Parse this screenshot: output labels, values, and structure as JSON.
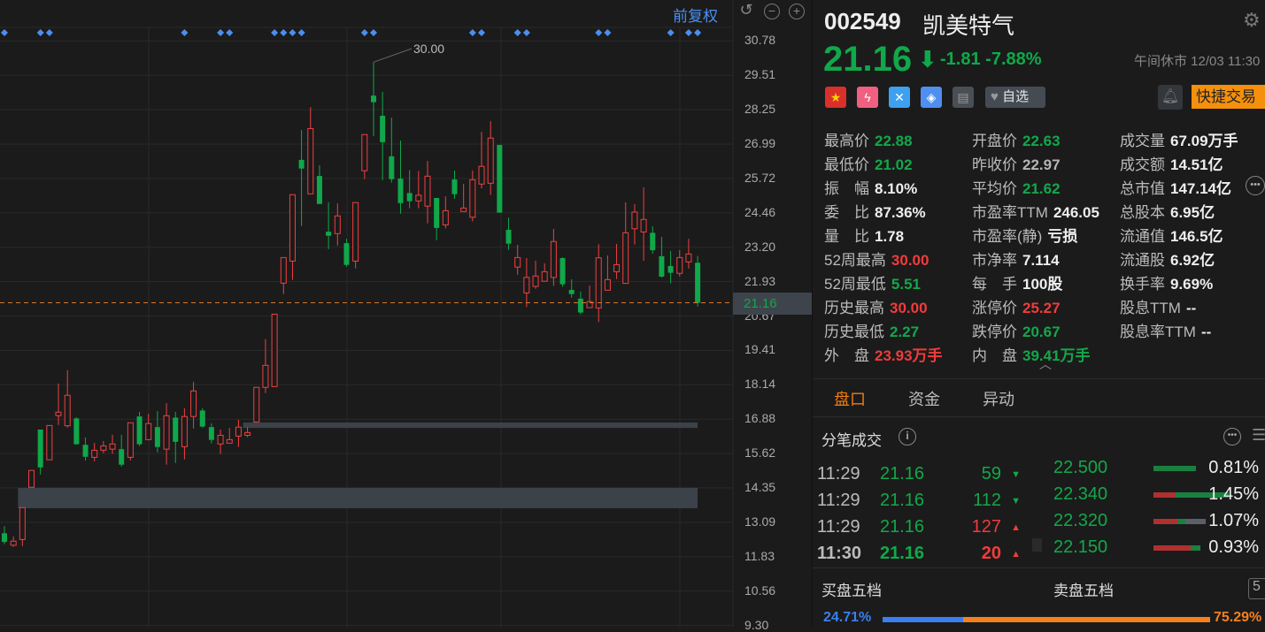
{
  "chart_toolbar": {
    "adjust_label": "前复权",
    "undo_icon": "undo-icon",
    "zoom_out_icon": "minus-circle-icon",
    "zoom_in_icon": "plus-circle-icon"
  },
  "chart_data": {
    "type": "candlestick",
    "y_ticks": [
      "30.78",
      "29.51",
      "28.25",
      "26.99",
      "25.72",
      "24.46",
      "23.20",
      "21.93",
      "20.67",
      "19.41",
      "18.14",
      "16.88",
      "15.62",
      "14.35",
      "13.09",
      "11.83",
      "10.56",
      "9.30"
    ],
    "ylim": [
      9.3,
      30.78
    ],
    "grid": true,
    "current_price": "21.16",
    "max_annotation": "30.00",
    "colors": {
      "up": "#f04040",
      "down": "#0fa84a",
      "marker": "#4a8ff0",
      "price_line": "#d9782a",
      "zone": "#3c424a"
    },
    "candles_ohlc": [
      [
        12.69,
        12.95,
        12.29,
        12.37
      ],
      [
        12.25,
        12.57,
        12.19,
        12.4
      ],
      [
        12.46,
        13.63,
        12.22,
        13.63
      ],
      [
        14.38,
        15.0,
        14.38,
        15.0
      ],
      [
        16.5,
        16.5,
        14.85,
        15.11
      ],
      [
        15.39,
        16.65,
        15.39,
        16.65
      ],
      [
        17.01,
        18.19,
        16.67,
        17.14
      ],
      [
        16.64,
        18.68,
        16.57,
        17.76
      ],
      [
        16.91,
        16.95,
        15.96,
        15.96
      ],
      [
        15.94,
        16.21,
        15.36,
        15.5
      ],
      [
        15.48,
        16.01,
        15.33,
        15.74
      ],
      [
        15.74,
        16.08,
        15.63,
        15.9
      ],
      [
        15.78,
        16.31,
        15.6,
        15.97
      ],
      [
        15.78,
        16.31,
        15.14,
        15.21
      ],
      [
        15.48,
        16.75,
        15.37,
        16.75
      ],
      [
        16.98,
        17.15,
        15.89,
        15.96
      ],
      [
        16.13,
        17.08,
        16.13,
        16.72
      ],
      [
        16.59,
        17.18,
        15.66,
        15.86
      ],
      [
        15.78,
        17.47,
        15.21,
        17.01
      ],
      [
        16.94,
        17.15,
        15.27,
        16.05
      ],
      [
        15.87,
        17.28,
        15.4,
        16.98
      ],
      [
        16.98,
        18.25,
        16.54,
        17.92
      ],
      [
        17.2,
        17.28,
        16.56,
        16.61
      ],
      [
        16.59,
        16.73,
        15.99,
        16.12
      ],
      [
        15.97,
        16.5,
        15.6,
        16.29
      ],
      [
        16.0,
        16.56,
        16.0,
        16.13
      ],
      [
        16.26,
        16.86,
        15.86,
        16.59
      ],
      [
        16.29,
        16.59,
        16.22,
        16.39
      ],
      [
        16.78,
        18.05,
        16.78,
        18.05
      ],
      [
        18.05,
        19.83,
        17.84,
        18.86
      ],
      [
        18.08,
        20.74,
        18.08,
        20.74
      ],
      [
        21.88,
        22.82,
        21.48,
        22.82
      ],
      [
        22.69,
        25.13,
        22.0,
        25.13
      ],
      [
        26.41,
        27.51,
        23.98,
        26.09
      ],
      [
        25.16,
        28.35,
        25.16,
        27.56
      ],
      [
        25.82,
        26.21,
        24.79,
        24.79
      ],
      [
        23.77,
        24.85,
        23.13,
        23.62
      ],
      [
        23.7,
        24.81,
        23.26,
        24.35
      ],
      [
        23.35,
        23.51,
        22.49,
        22.55
      ],
      [
        22.69,
        24.84,
        22.42,
        24.84
      ],
      [
        26.01,
        27.34,
        25.7,
        27.34
      ],
      [
        28.77,
        30.0,
        27.28,
        28.53
      ],
      [
        28.03,
        28.91,
        25.67,
        27.06
      ],
      [
        26.54,
        27.96,
        25.57,
        25.7
      ],
      [
        25.72,
        27.12,
        24.43,
        24.82
      ],
      [
        25.19,
        26.03,
        24.63,
        24.89
      ],
      [
        24.9,
        26.0,
        24.63,
        25.11
      ],
      [
        24.71,
        26.37,
        24.08,
        25.81
      ],
      [
        25.01,
        25.01,
        23.46,
        23.91
      ],
      [
        24.02,
        25.07,
        23.89,
        24.54
      ],
      [
        25.69,
        26.02,
        24.98,
        25.15
      ],
      [
        24.51,
        25.53,
        24.51,
        24.64
      ],
      [
        24.3,
        26.02,
        24.15,
        25.68
      ],
      [
        25.52,
        27.44,
        25.36,
        26.17
      ],
      [
        25.55,
        27.83,
        25.12,
        27.21
      ],
      [
        26.96,
        26.96,
        24.47,
        24.47
      ],
      [
        23.84,
        24.29,
        23.1,
        23.33
      ],
      [
        22.47,
        23.29,
        22.19,
        22.82
      ],
      [
        21.52,
        22.8,
        21.0,
        22.09
      ],
      [
        21.76,
        22.7,
        21.67,
        22.14
      ],
      [
        21.95,
        22.61,
        21.95,
        22.3
      ],
      [
        22.09,
        23.87,
        21.78,
        23.41
      ],
      [
        22.8,
        22.83,
        21.75,
        21.84
      ],
      [
        21.63,
        22.02,
        21.35,
        21.48
      ],
      [
        21.31,
        21.57,
        20.73,
        20.8
      ],
      [
        20.98,
        21.79,
        20.98,
        21.2
      ],
      [
        20.97,
        23.31,
        20.45,
        22.81
      ],
      [
        21.62,
        22.9,
        21.62,
        22.01
      ],
      [
        22.3,
        23.32,
        22.03,
        22.56
      ],
      [
        21.87,
        24.85,
        21.87,
        23.73
      ],
      [
        23.88,
        24.78,
        23.3,
        24.49
      ],
      [
        23.76,
        25.4,
        22.7,
        24.22
      ],
      [
        23.73,
        23.97,
        22.97,
        23.09
      ],
      [
        22.87,
        23.58,
        22.09,
        22.12
      ],
      [
        22.51,
        23.06,
        21.87,
        22.26
      ],
      [
        22.24,
        23.09,
        22.13,
        22.82
      ],
      [
        22.66,
        23.51,
        22.42,
        22.95
      ],
      [
        22.63,
        22.88,
        21.02,
        21.16
      ]
    ],
    "event_marker_candles": [
      0,
      4,
      5,
      20,
      24,
      25,
      30,
      31,
      32,
      33,
      40,
      41,
      52,
      53,
      57,
      58,
      66,
      67,
      74,
      76,
      77
    ],
    "zones": [
      {
        "from_candle": 2,
        "low": 13.61,
        "high": 14.36
      },
      {
        "from_candle": 27,
        "low": 16.56,
        "high": 16.76
      }
    ]
  },
  "header": {
    "code": "002549",
    "name": "凯美特气",
    "price": "21.16",
    "arrow": "⬇",
    "change": "-1.81",
    "change_pct": "-7.88%",
    "status": "午间休市 12/03 11:30",
    "watch_label": "自选",
    "quick_trade": "快捷交易",
    "icons": [
      "china-flag-icon",
      "margin-trading-icon",
      "connect-icon",
      "tag-icon",
      "note-icon"
    ]
  },
  "stats": [
    [
      {
        "l": "最高价",
        "v": "22.88",
        "c": "#12a84a"
      },
      {
        "l": "最低价",
        "v": "21.02",
        "c": "#12a84a"
      },
      {
        "l": "振　幅",
        "v": "8.10%",
        "c": "#eeeeee"
      },
      {
        "l": "委　比",
        "v": "87.36%",
        "c": "#eeeeee"
      },
      {
        "l": "量　比",
        "v": "1.78",
        "c": "#eeeeee"
      },
      {
        "l": "52周最高",
        "v": "30.00",
        "c": "#f23b3b"
      },
      {
        "l": "52周最低",
        "v": "5.51",
        "c": "#12a84a"
      },
      {
        "l": "历史最高",
        "v": "30.00",
        "c": "#f23b3b"
      },
      {
        "l": "历史最低",
        "v": "2.27",
        "c": "#12a84a"
      },
      {
        "l": "外　盘",
        "v": "23.93万手",
        "c": "#f23b3b"
      }
    ],
    [
      {
        "l": "开盘价",
        "v": "22.63",
        "c": "#12a84a"
      },
      {
        "l": "昨收价",
        "v": "22.97",
        "c": "#b5b5b5"
      },
      {
        "l": "平均价",
        "v": "21.62",
        "c": "#12a84a"
      },
      {
        "l": "市盈率TTM",
        "v": "246.05",
        "c": "#eeeeee"
      },
      {
        "l": "市盈率(静)",
        "v": "亏损",
        "c": "#eeeeee"
      },
      {
        "l": "市净率",
        "v": "7.114",
        "c": "#eeeeee"
      },
      {
        "l": "每　手",
        "v": "100股",
        "c": "#eeeeee"
      },
      {
        "l": "涨停价",
        "v": "25.27",
        "c": "#f23b3b"
      },
      {
        "l": "跌停价",
        "v": "20.67",
        "c": "#12a84a"
      },
      {
        "l": "内　盘",
        "v": "39.41万手",
        "c": "#12a84a"
      }
    ],
    [
      {
        "l": "成交量",
        "v": "67.09万手",
        "c": "#eeeeee"
      },
      {
        "l": "成交额",
        "v": "14.51亿",
        "c": "#eeeeee"
      },
      {
        "l": "总市值",
        "v": "147.14亿",
        "c": "#eeeeee"
      },
      {
        "l": "总股本",
        "v": "6.95亿",
        "c": "#eeeeee"
      },
      {
        "l": "流通值",
        "v": "146.5亿",
        "c": "#eeeeee"
      },
      {
        "l": "流通股",
        "v": "6.92亿",
        "c": "#eeeeee"
      },
      {
        "l": "换手率",
        "v": "9.69%",
        "c": "#eeeeee"
      },
      {
        "l": "股息TTM",
        "v": "--",
        "c": "#eeeeee"
      },
      {
        "l": "股息率TTM",
        "v": "--",
        "c": "#eeeeee"
      }
    ]
  ],
  "tabs": [
    {
      "label": "盘口",
      "active": true
    },
    {
      "label": "资金"
    },
    {
      "label": "异动"
    }
  ],
  "ticks": {
    "title": "分笔成交",
    "rows": [
      {
        "time": "11:29",
        "price": "21.16",
        "vol": "59",
        "dir": "down"
      },
      {
        "time": "11:29",
        "price": "21.16",
        "vol": "112",
        "dir": "down"
      },
      {
        "time": "11:29",
        "price": "21.16",
        "vol": "127",
        "dir": "up"
      },
      {
        "time": "11:30",
        "price": "21.16",
        "vol": "20",
        "dir": "up",
        "bold": true
      }
    ]
  },
  "levels": [
    {
      "price": "22.500",
      "pct": "0.81%",
      "segments": [
        0,
        1,
        0
      ]
    },
    {
      "price": "22.340",
      "pct": "1.45%",
      "segments": [
        0.3,
        0.7,
        0
      ]
    },
    {
      "price": "22.320",
      "pct": "1.07%",
      "segments": [
        0.45,
        0.15,
        0.4
      ]
    },
    {
      "price": "22.150",
      "pct": "0.93%",
      "segments": [
        0.8,
        0.2,
        0
      ]
    }
  ],
  "book": {
    "bid_title": "买盘五档",
    "ask_title": "卖盘五档",
    "depth": "5",
    "bid_pct": "24.71%",
    "ask_pct": "75.29%",
    "bid_ratio": 0.2471
  }
}
